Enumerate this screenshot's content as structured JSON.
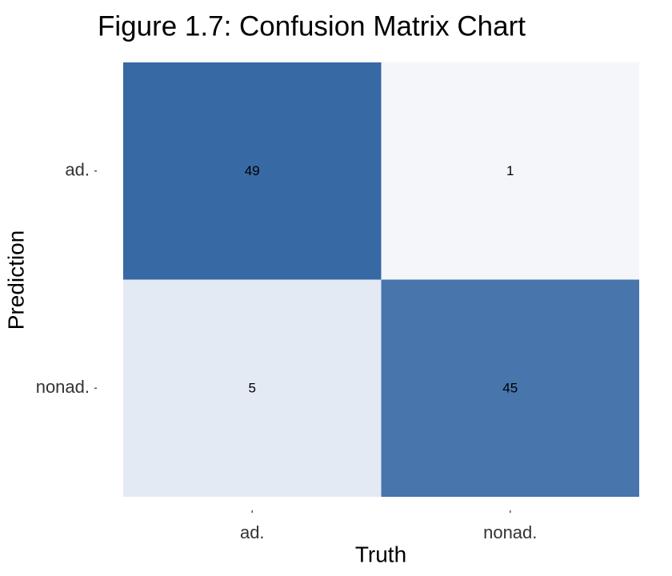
{
  "chart_data": {
    "type": "heatmap",
    "title": "Figure 1.7: Confusion Matrix Chart",
    "xlabel": "Truth",
    "ylabel": "Prediction",
    "x_categories": [
      "ad.",
      "nonad."
    ],
    "y_categories": [
      "ad.",
      "nonad."
    ],
    "cells": [
      {
        "truth": "ad.",
        "prediction": "ad.",
        "value": 49
      },
      {
        "truth": "nonad.",
        "prediction": "ad.",
        "value": 1
      },
      {
        "truth": "ad.",
        "prediction": "nonad.",
        "value": 5
      },
      {
        "truth": "nonad.",
        "prediction": "nonad.",
        "value": 45
      }
    ],
    "value_range": [
      0,
      50
    ],
    "colors": {
      "low": "#f8f9fc",
      "high": "#3366a3"
    },
    "grid": false,
    "legend": "none"
  }
}
